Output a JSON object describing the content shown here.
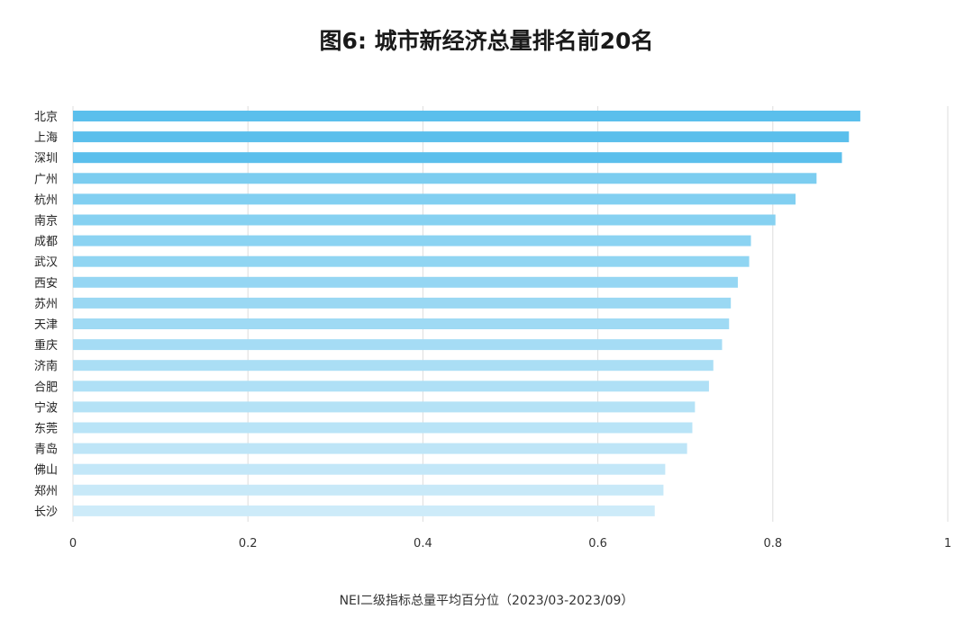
{
  "chart_data": {
    "type": "bar",
    "orientation": "horizontal",
    "title": "图6: 城市新经济总量排名前20名",
    "xlabel": "NEI二级指标总量平均百分位（2023/03-2023/09）",
    "ylabel": "",
    "xlim": [
      0,
      1
    ],
    "x_ticks": [
      "0",
      "0.2",
      "0.4",
      "0.6",
      "0.8",
      "1"
    ],
    "x_tick_values": [
      0,
      0.2,
      0.4,
      0.6,
      0.8,
      1
    ],
    "grid": "vertical",
    "legend": "none",
    "categories": [
      "北京",
      "上海",
      "深圳",
      "广州",
      "杭州",
      "南京",
      "成都",
      "武汉",
      "西安",
      "苏州",
      "天津",
      "重庆",
      "济南",
      "合肥",
      "宁波",
      "东莞",
      "青岛",
      "佛山",
      "郑州",
      "长沙"
    ],
    "values": [
      0.9,
      0.887,
      0.879,
      0.85,
      0.826,
      0.803,
      0.775,
      0.773,
      0.76,
      0.752,
      0.75,
      0.742,
      0.732,
      0.727,
      0.711,
      0.708,
      0.702,
      0.677,
      0.675,
      0.665
    ],
    "colors": {
      "top3": "#5bbfec",
      "gradient_start": "#7ccdf0",
      "gradient_end": "#cdebf9",
      "gridline": "#dddddd"
    }
  }
}
